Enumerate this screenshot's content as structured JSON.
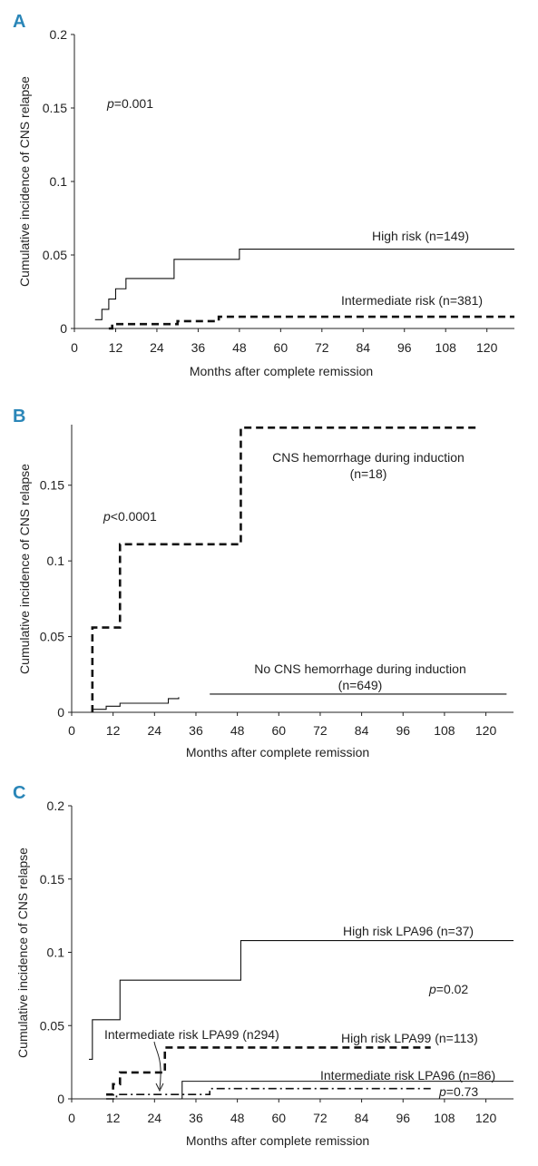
{
  "chart_data": [
    {
      "panel": "A",
      "type": "line",
      "step": true,
      "xlabel": "Months after complete remission",
      "ylabel": "Cumulative incidence of CNS relapse",
      "xlim": [
        0,
        120
      ],
      "ylim": [
        0,
        0.2
      ],
      "xticks": [
        "0",
        "12",
        "24",
        "36",
        "48",
        "60",
        "72",
        "84",
        "96",
        "108",
        "120"
      ],
      "yticks": [
        "0",
        "0.05",
        "0.1",
        "0.15",
        "0.2"
      ],
      "annotations": [
        {
          "text_italic": "p",
          "text": "=0.001"
        }
      ],
      "series": [
        {
          "name": "High risk (n=149)",
          "style": "solid",
          "x": [
            6,
            8,
            10,
            12,
            15,
            29,
            48,
            128
          ],
          "y": [
            0.006,
            0.013,
            0.02,
            0.027,
            0.034,
            0.047,
            0.054,
            0.054
          ]
        },
        {
          "name": "Intermediate risk (n=381)",
          "style": "dashed",
          "x": [
            10,
            11,
            30,
            37,
            42,
            128
          ],
          "y": [
            0,
            0.003,
            0.005,
            0.005,
            0.008,
            0.008
          ]
        }
      ]
    },
    {
      "panel": "B",
      "type": "line",
      "step": true,
      "xlabel": "Months after complete remission",
      "ylabel": "Cumulative incidence of CNS relapse",
      "xlim": [
        0,
        120
      ],
      "ylim": [
        0,
        0.19
      ],
      "xticks": [
        "0",
        "12",
        "24",
        "36",
        "48",
        "60",
        "72",
        "84",
        "96",
        "108",
        "120"
      ],
      "yticks": [
        "0",
        "0.05",
        "0.1",
        "0.15"
      ],
      "annotations": [
        {
          "text_italic": "p",
          "text": "<0.0001"
        }
      ],
      "series": [
        {
          "name": "CNS hemorrhage during induction (n=18)",
          "label_lines": [
            "CNS hemorrhage during induction",
            "(n=18)"
          ],
          "style": "dashed",
          "x": [
            6,
            6,
            14,
            49,
            118
          ],
          "y": [
            0,
            0.056,
            0.111,
            0.188,
            0.188
          ]
        },
        {
          "name": "No CNS hemorrhage during induction (n=649)",
          "label_lines": [
            "No CNS hemorrhage during induction",
            "(n=649)"
          ],
          "style": "solid",
          "x": [
            6,
            10,
            14,
            16,
            28,
            31
          ],
          "y": [
            0.002,
            0.004,
            0.006,
            0.006,
            0.009,
            0.01
          ]
        },
        {
          "name": "",
          "style": "solid",
          "x": [
            40,
            126
          ],
          "y": [
            0.012,
            0.012
          ]
        }
      ]
    },
    {
      "panel": "C",
      "type": "line",
      "step": true,
      "xlabel": "Months after complete remission",
      "ylabel": "Cumulative incidence of CNS relapse",
      "xlim": [
        0,
        120
      ],
      "ylim": [
        0,
        0.2
      ],
      "xticks": [
        "0",
        "12",
        "24",
        "36",
        "48",
        "60",
        "72",
        "84",
        "96",
        "108",
        "120"
      ],
      "yticks": [
        "0",
        "0.05",
        "0.1",
        "0.15",
        "0.2"
      ],
      "annotations": [
        {
          "text_italic": "p",
          "text": "=0.02"
        },
        {
          "text_italic": "p",
          "text": "=0.73"
        }
      ],
      "series": [
        {
          "name": "High risk LPA96 (n=37)",
          "style": "solid",
          "x": [
            5,
            6,
            14,
            48,
            49,
            128
          ],
          "y": [
            0.027,
            0.054,
            0.081,
            0.081,
            0.108,
            0.108
          ]
        },
        {
          "name": "High risk LPA99 (n=113)",
          "style": "dashed",
          "x": [
            10,
            12,
            14,
            27,
            104
          ],
          "y": [
            0.003,
            0.01,
            0.018,
            0.035,
            0.035
          ]
        },
        {
          "name": "Intermediate risk LPA96 (n=86)",
          "style": "solid",
          "x": [
            31,
            32,
            128
          ],
          "y": [
            0,
            0.012,
            0.012
          ]
        },
        {
          "name": "Intermediate risk LPA99 (n294)",
          "style": "dashdot",
          "x": [
            10,
            13,
            40,
            104
          ],
          "y": [
            0,
            0.003,
            0.007,
            0.007
          ]
        }
      ]
    }
  ]
}
